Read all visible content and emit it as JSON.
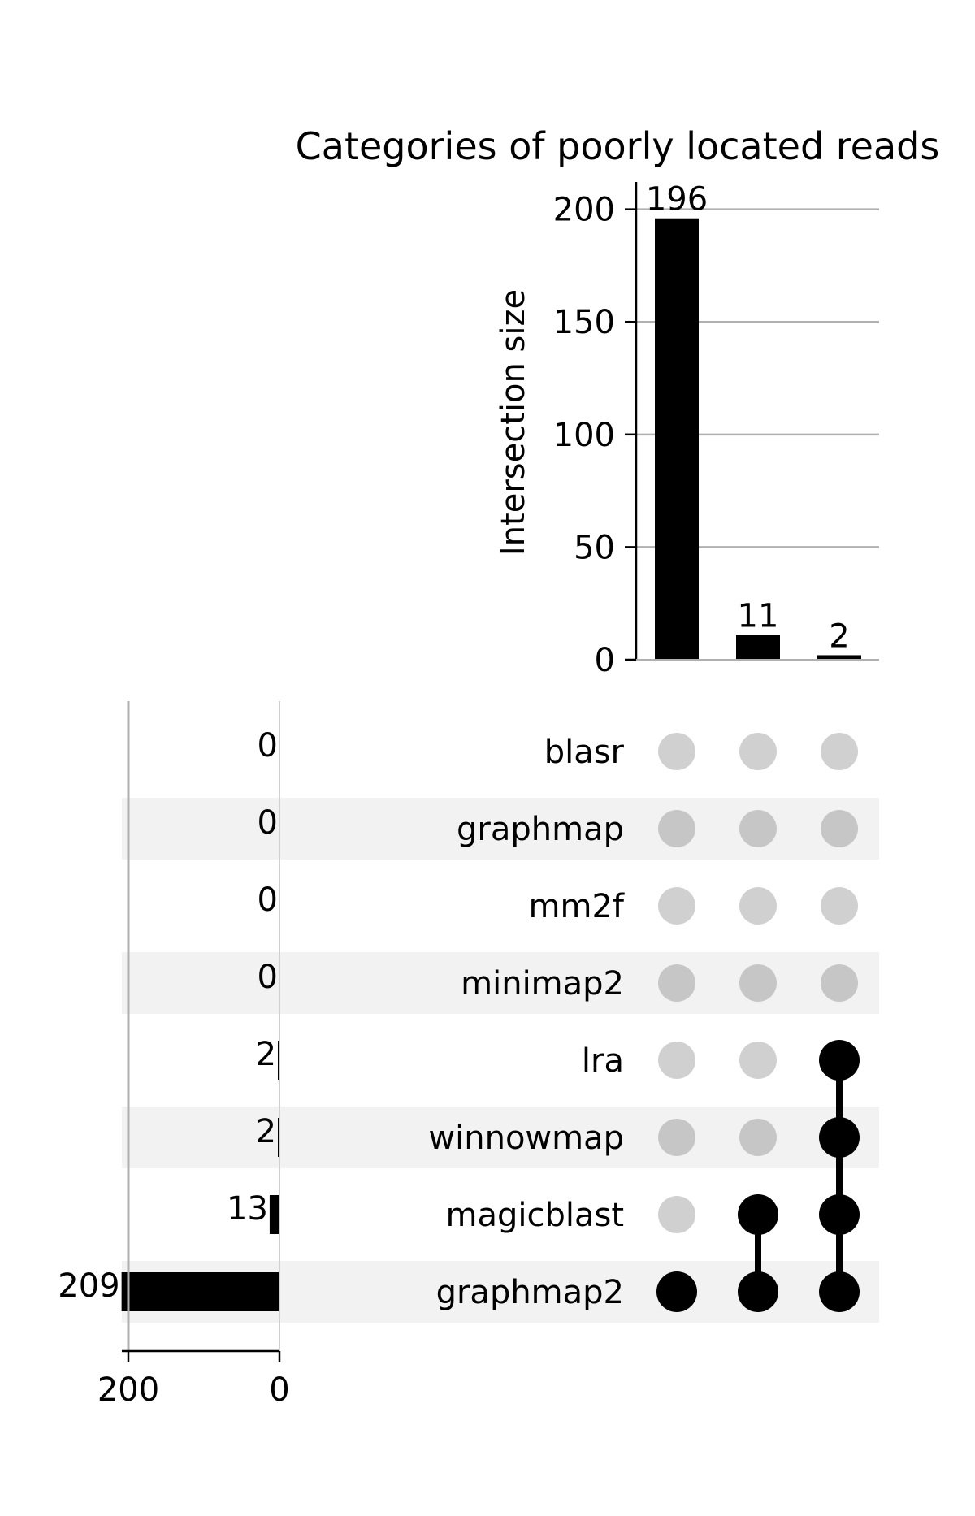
{
  "chart_data": {
    "type": "upset",
    "title": "Categories of poorly located reads",
    "intersection_axis": {
      "label": "Intersection size",
      "ylim": [
        0,
        206
      ],
      "ticks": [
        0,
        50,
        100,
        150,
        200
      ],
      "grid": true
    },
    "set_size_axis": {
      "label": "",
      "xlim": [
        212,
        0
      ],
      "ticks": [
        200,
        0
      ]
    },
    "sets": [
      {
        "name": "blasr",
        "size": 0
      },
      {
        "name": "graphmap",
        "size": 0
      },
      {
        "name": "mm2f",
        "size": 0
      },
      {
        "name": "minimap2",
        "size": 0
      },
      {
        "name": "lra",
        "size": 2
      },
      {
        "name": "winnowmap",
        "size": 2
      },
      {
        "name": "magicblast",
        "size": 13
      },
      {
        "name": "graphmap2",
        "size": 209
      }
    ],
    "intersections": [
      {
        "members": [
          "graphmap2"
        ],
        "size": 196
      },
      {
        "members": [
          "magicblast",
          "graphmap2"
        ],
        "size": 11
      },
      {
        "members": [
          "lra",
          "winnowmap",
          "magicblast",
          "graphmap2"
        ],
        "size": 2
      }
    ],
    "colors": {
      "bar": "#000000",
      "active_dot": "#000000",
      "inactive_dot": "#d0d0d0",
      "shade": "#f2f2f2",
      "grid": "#b0b0b0"
    }
  }
}
